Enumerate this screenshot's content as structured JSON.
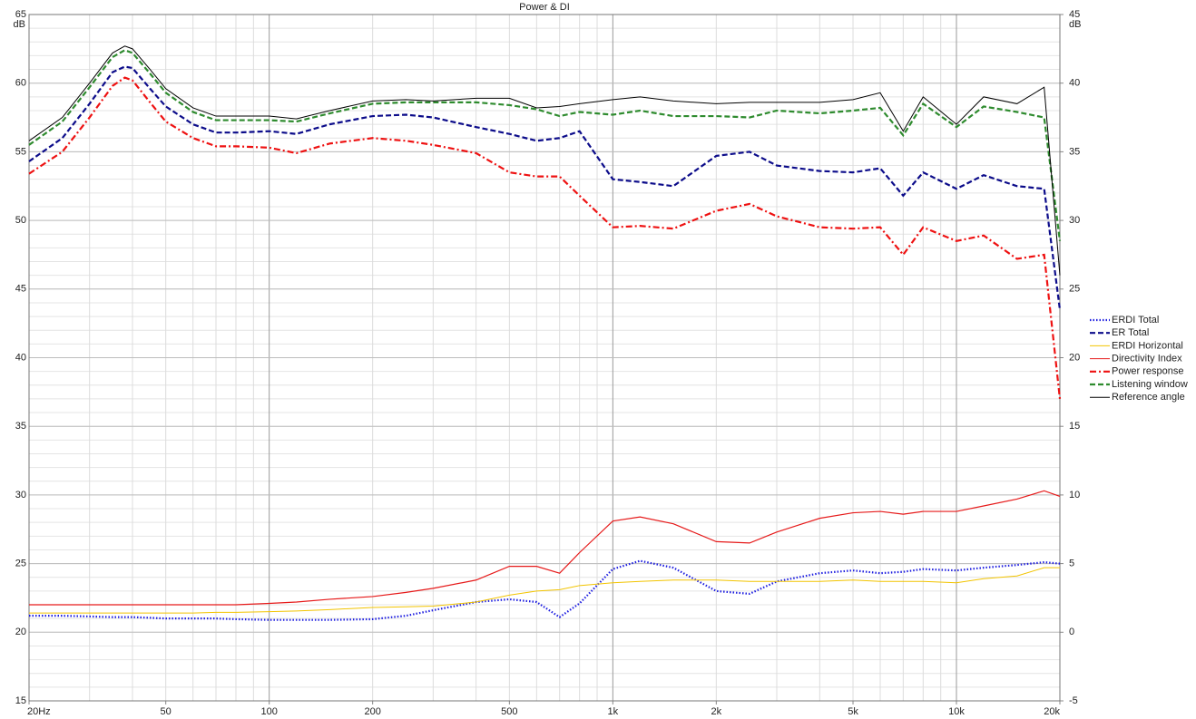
{
  "chart_data": {
    "type": "line",
    "title": "Power & DI",
    "y_label": "dB",
    "y2_label": "dB",
    "log_x": true,
    "grid": true,
    "legend": "right",
    "x": [
      20,
      25,
      30,
      35,
      38,
      40,
      45,
      50,
      60,
      70,
      80,
      100,
      120,
      150,
      200,
      250,
      300,
      400,
      500,
      600,
      700,
      800,
      1000,
      1200,
      1500,
      2000,
      2500,
      3000,
      4000,
      5000,
      6000,
      7000,
      8000,
      10000,
      12000,
      15000,
      18000,
      20000
    ],
    "xlim": [
      20,
      20000
    ],
    "xticks": [
      {
        "value": 20,
        "label": "20Hz"
      },
      50,
      100,
      200,
      500,
      {
        "value": 1000,
        "label": "1k"
      },
      {
        "value": 2000,
        "label": "2k"
      },
      {
        "value": 5000,
        "label": "5k"
      },
      {
        "value": 10000,
        "label": "10k"
      },
      {
        "value": 20000,
        "label": "20k"
      }
    ],
    "ylim": [
      15,
      65
    ],
    "yticks": [
      15,
      20,
      25,
      30,
      35,
      40,
      45,
      50,
      55,
      60,
      65
    ],
    "y2lim": [
      -5,
      45
    ],
    "y2ticks": [
      -5,
      0,
      5,
      10,
      15,
      20,
      25,
      30,
      35,
      40,
      45
    ],
    "series": [
      {
        "name": "ERDI Total",
        "color": "#1f1fe0",
        "style": "dotted",
        "axis": "y2",
        "values": [
          1.2,
          1.2,
          1.15,
          1.1,
          1.1,
          1.1,
          1.05,
          1,
          1,
          1,
          0.95,
          0.9,
          0.9,
          0.9,
          0.95,
          1.2,
          1.6,
          2.2,
          2.4,
          2.2,
          1.1,
          2.1,
          4.6,
          5.2,
          4.7,
          3,
          2.8,
          3.7,
          4.3,
          4.5,
          4.3,
          4.4,
          4.6,
          4.5,
          4.7,
          4.9,
          5.1,
          5
        ]
      },
      {
        "name": "ER Total",
        "color": "#0c0c8a",
        "style": "dashed",
        "values": [
          54.3,
          56,
          58.5,
          60.8,
          61.2,
          61.1,
          59.6,
          58.3,
          57,
          56.4,
          56.4,
          56.5,
          56.3,
          57,
          57.6,
          57.7,
          57.5,
          56.8,
          56.3,
          55.8,
          56,
          56.5,
          53,
          52.8,
          52.5,
          54.7,
          55,
          54,
          53.6,
          53.5,
          53.8,
          51.8,
          53.5,
          52.3,
          53.3,
          52.5,
          52.3,
          43.5
        ]
      },
      {
        "name": "ERDI Horizontal",
        "color": "#f2c400",
        "style": "solid",
        "axis": "y2",
        "values": [
          1.4,
          1.4,
          1.4,
          1.4,
          1.4,
          1.4,
          1.4,
          1.4,
          1.4,
          1.45,
          1.45,
          1.5,
          1.55,
          1.65,
          1.8,
          1.85,
          1.9,
          2.2,
          2.7,
          3,
          3.1,
          3.4,
          3.6,
          3.7,
          3.8,
          3.8,
          3.7,
          3.7,
          3.7,
          3.8,
          3.7,
          3.7,
          3.7,
          3.6,
          3.9,
          4.1,
          4.7,
          4.7
        ]
      },
      {
        "name": "Directivity Index",
        "color": "#e61a1a",
        "style": "solid",
        "axis": "y2",
        "values": [
          2,
          2,
          2,
          2,
          2,
          2,
          2,
          2,
          2,
          2,
          2,
          2.1,
          2.2,
          2.4,
          2.6,
          2.9,
          3.2,
          3.8,
          4.8,
          4.8,
          4.3,
          5.8,
          8.1,
          8.4,
          7.9,
          6.6,
          6.5,
          7.3,
          8.3,
          8.7,
          8.8,
          8.6,
          8.8,
          8.8,
          9.2,
          9.7,
          10.3,
          9.9
        ]
      },
      {
        "name": "Power response",
        "color": "#ee1111",
        "style": "dashdot",
        "values": [
          53.4,
          55,
          57.5,
          59.8,
          60.4,
          60.2,
          58.6,
          57.2,
          56,
          55.4,
          55.4,
          55.3,
          54.9,
          55.6,
          56,
          55.8,
          55.5,
          54.9,
          53.5,
          53.2,
          53.2,
          51.8,
          49.5,
          49.6,
          49.4,
          50.7,
          51.2,
          50.3,
          49.5,
          49.4,
          49.5,
          47.5,
          49.5,
          48.5,
          48.9,
          47.2,
          47.5,
          37
        ]
      },
      {
        "name": "Listening window",
        "color": "#2e8b2e",
        "style": "dashed",
        "values": [
          55.5,
          57.2,
          59.7,
          61.9,
          62.4,
          62.2,
          60.7,
          59.3,
          57.9,
          57.3,
          57.3,
          57.3,
          57.2,
          57.8,
          58.5,
          58.6,
          58.6,
          58.6,
          58.4,
          58.1,
          57.6,
          57.9,
          57.7,
          58,
          57.6,
          57.6,
          57.5,
          58,
          57.8,
          58,
          58.2,
          56.2,
          58.5,
          56.8,
          58.3,
          57.9,
          57.5,
          48.5
        ]
      },
      {
        "name": "Reference angle",
        "color": "#000000",
        "style": "solid",
        "values": [
          55.8,
          57.5,
          60,
          62.2,
          62.7,
          62.5,
          61,
          59.6,
          58.2,
          57.6,
          57.6,
          57.6,
          57.4,
          58,
          58.7,
          58.8,
          58.7,
          58.9,
          58.9,
          58.2,
          58.3,
          58.5,
          58.8,
          59,
          58.7,
          58.5,
          58.6,
          58.6,
          58.6,
          58.8,
          59.3,
          56.5,
          59,
          57,
          59,
          58.5,
          59.7,
          46
        ]
      }
    ]
  }
}
